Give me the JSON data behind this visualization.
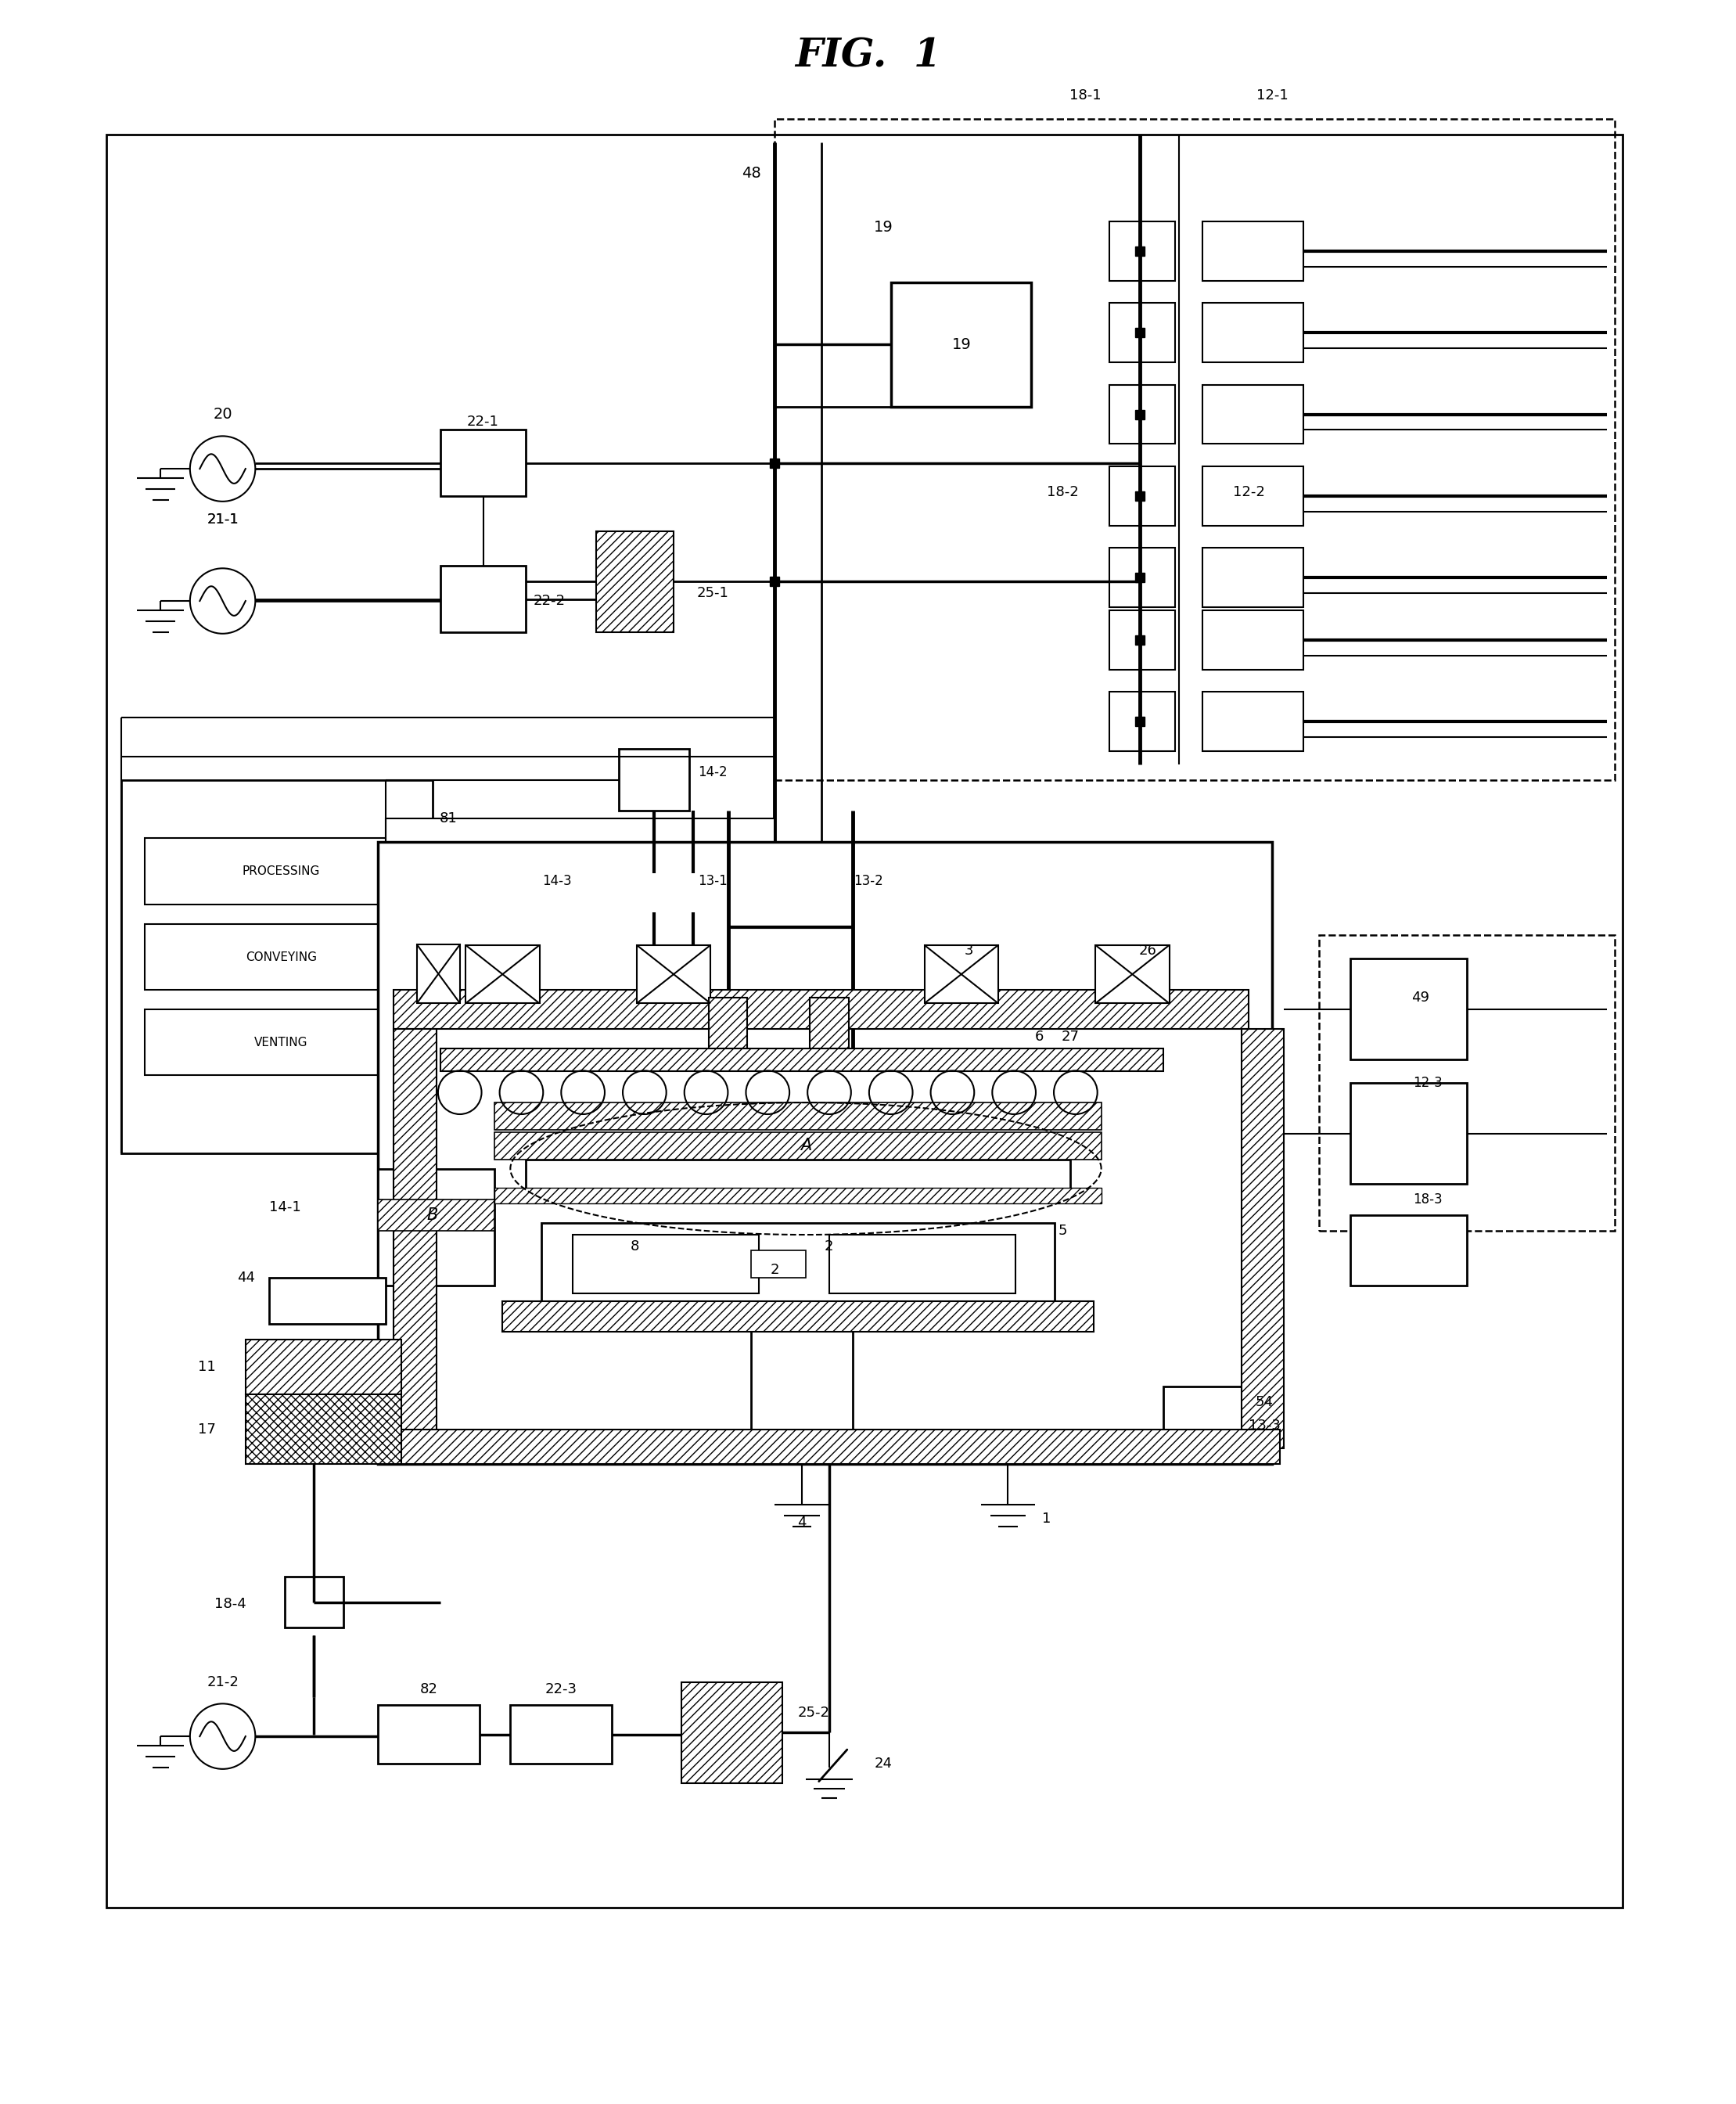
{
  "title": "FIG. 1",
  "bg_color": "#ffffff",
  "fig_width": 22.19,
  "fig_height": 26.89,
  "xlim": [
    0,
    22
  ],
  "ylim": [
    0,
    27
  ]
}
